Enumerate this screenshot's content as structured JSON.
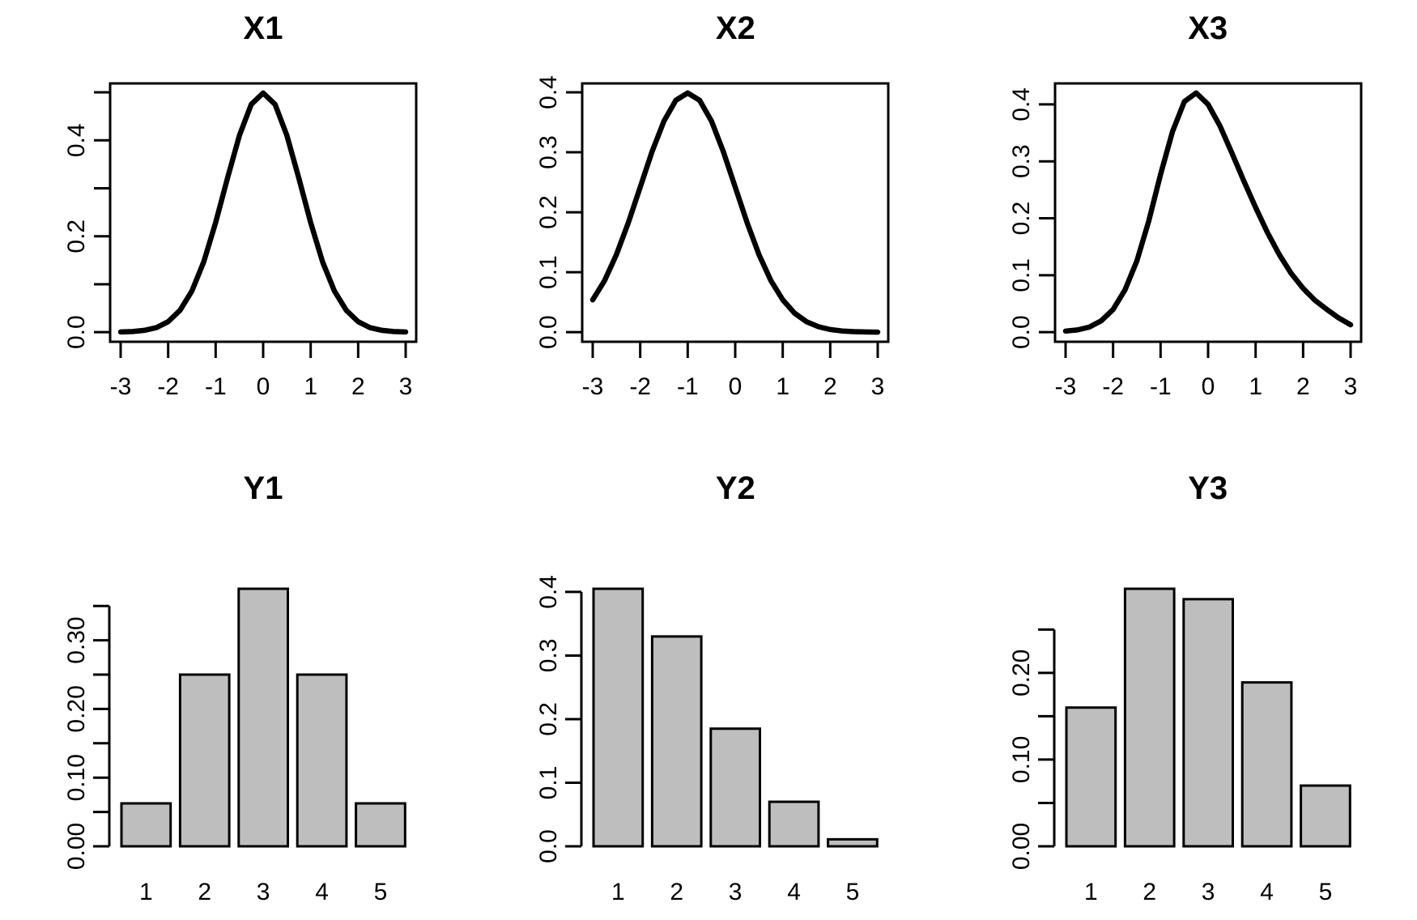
{
  "figure": {
    "background": "#ffffff",
    "text_color": "#000000",
    "curve_color": "#000000",
    "bar_fill": "#bebebe",
    "bar_stroke": "#000000",
    "grid": "off",
    "legend": "none"
  },
  "chart_data": [
    {
      "id": "X1",
      "type": "line",
      "title": "X1",
      "xlabel": "",
      "ylabel": "",
      "xlim": [
        -3,
        3
      ],
      "ylim": [
        0,
        0.5
      ],
      "x_axis": {
        "ticks": [
          -3,
          -2,
          -1,
          0,
          1,
          2,
          3
        ],
        "labels": [
          "-3",
          "-2",
          "-1",
          "0",
          "1",
          "2",
          "3"
        ]
      },
      "y_axis": {
        "ticks": [
          0,
          0.1,
          0.2,
          0.3,
          0.4,
          0.5
        ],
        "labels": [
          "0.0",
          "",
          "0.2",
          "",
          "0.4",
          ""
        ]
      },
      "x": [
        -3,
        -2.75,
        -2.5,
        -2.25,
        -2,
        -1.75,
        -1.5,
        -1.25,
        -1,
        -0.75,
        -0.5,
        -0.25,
        0,
        0.25,
        0.5,
        0.75,
        1,
        1.25,
        1.5,
        1.75,
        2,
        2.25,
        2.5,
        2.75,
        3
      ],
      "y": [
        0.0004,
        0.0014,
        0.0038,
        0.0095,
        0.0219,
        0.0456,
        0.0859,
        0.1471,
        0.2284,
        0.3215,
        0.4102,
        0.475,
        0.4987,
        0.475,
        0.4102,
        0.3215,
        0.2284,
        0.1471,
        0.0859,
        0.0456,
        0.0219,
        0.0095,
        0.0038,
        0.0014,
        0.0004
      ]
    },
    {
      "id": "X2",
      "type": "line",
      "title": "X2",
      "xlabel": "",
      "ylabel": "",
      "xlim": [
        -3,
        3
      ],
      "ylim": [
        0,
        0.4
      ],
      "x_axis": {
        "ticks": [
          -3,
          -2,
          -1,
          0,
          1,
          2,
          3
        ],
        "labels": [
          "-3",
          "-2",
          "-1",
          "0",
          "1",
          "2",
          "3"
        ]
      },
      "y_axis": {
        "ticks": [
          0,
          0.1,
          0.2,
          0.3,
          0.4
        ],
        "labels": [
          "0.0",
          "0.1",
          "0.2",
          "0.3",
          "0.4"
        ]
      },
      "x": [
        -3,
        -2.75,
        -2.5,
        -2.25,
        -2,
        -1.75,
        -1.5,
        -1.25,
        -1,
        -0.75,
        -0.5,
        -0.25,
        0,
        0.25,
        0.5,
        0.75,
        1,
        1.25,
        1.5,
        1.75,
        2,
        2.25,
        2.5,
        2.75,
        3
      ],
      "y": [
        0.054,
        0.0862,
        0.1295,
        0.1826,
        0.242,
        0.3011,
        0.3521,
        0.3867,
        0.3989,
        0.3867,
        0.3521,
        0.3011,
        0.242,
        0.1826,
        0.1295,
        0.0862,
        0.054,
        0.0317,
        0.0175,
        0.0091,
        0.0044,
        0.002,
        0.0009,
        0.0004,
        0.0001
      ]
    },
    {
      "id": "X3",
      "type": "line",
      "title": "X3",
      "xlabel": "",
      "ylabel": "",
      "xlim": [
        -3,
        3
      ],
      "ylim": [
        0,
        0.42
      ],
      "x_axis": {
        "ticks": [
          -3,
          -2,
          -1,
          0,
          1,
          2,
          3
        ],
        "labels": [
          "-3",
          "-2",
          "-1",
          "0",
          "1",
          "2",
          "3"
        ]
      },
      "y_axis": {
        "ticks": [
          0,
          0.1,
          0.2,
          0.3,
          0.4
        ],
        "labels": [
          "0.0",
          "0.1",
          "0.2",
          "0.3",
          "0.4"
        ]
      },
      "x": [
        -3,
        -2.75,
        -2.5,
        -2.25,
        -2,
        -1.75,
        -1.5,
        -1.25,
        -1,
        -0.75,
        -0.5,
        -0.25,
        0,
        0.25,
        0.5,
        0.75,
        1,
        1.25,
        1.5,
        1.75,
        2,
        2.25,
        2.5,
        2.75,
        3
      ],
      "y": [
        0.002,
        0.004,
        0.009,
        0.02,
        0.04,
        0.074,
        0.125,
        0.195,
        0.277,
        0.352,
        0.405,
        0.42,
        0.4,
        0.362,
        0.315,
        0.266,
        0.219,
        0.175,
        0.136,
        0.103,
        0.077,
        0.056,
        0.04,
        0.025,
        0.013
      ]
    },
    {
      "id": "Y1",
      "type": "bar",
      "title": "Y1",
      "xlabel": "",
      "ylabel": "",
      "categories": [
        "1",
        "2",
        "3",
        "4",
        "5"
      ],
      "values": [
        0.0625,
        0.25,
        0.375,
        0.25,
        0.0625
      ],
      "y_axis": {
        "ticks": [
          0,
          0.05,
          0.1,
          0.15,
          0.2,
          0.25,
          0.3,
          0.35
        ],
        "labels": [
          "0.00",
          "",
          "0.10",
          "",
          "0.20",
          "",
          "0.30",
          ""
        ]
      }
    },
    {
      "id": "Y2",
      "type": "bar",
      "title": "Y2",
      "xlabel": "",
      "ylabel": "",
      "categories": [
        "1",
        "2",
        "3",
        "4",
        "5"
      ],
      "values": [
        0.405,
        0.33,
        0.185,
        0.07,
        0.011
      ],
      "y_axis": {
        "ticks": [
          0,
          0.1,
          0.2,
          0.3,
          0.4
        ],
        "labels": [
          "0.0",
          "0.1",
          "0.2",
          "0.3",
          "0.4"
        ]
      }
    },
    {
      "id": "Y3",
      "type": "bar",
      "title": "Y3",
      "xlabel": "",
      "ylabel": "",
      "categories": [
        "1",
        "2",
        "3",
        "4",
        "5"
      ],
      "values": [
        0.16,
        0.297,
        0.285,
        0.189,
        0.07
      ],
      "y_axis": {
        "ticks": [
          0,
          0.05,
          0.1,
          0.15,
          0.2,
          0.25
        ],
        "labels": [
          "0.00",
          "",
          "0.10",
          "",
          "0.20",
          ""
        ]
      }
    }
  ]
}
